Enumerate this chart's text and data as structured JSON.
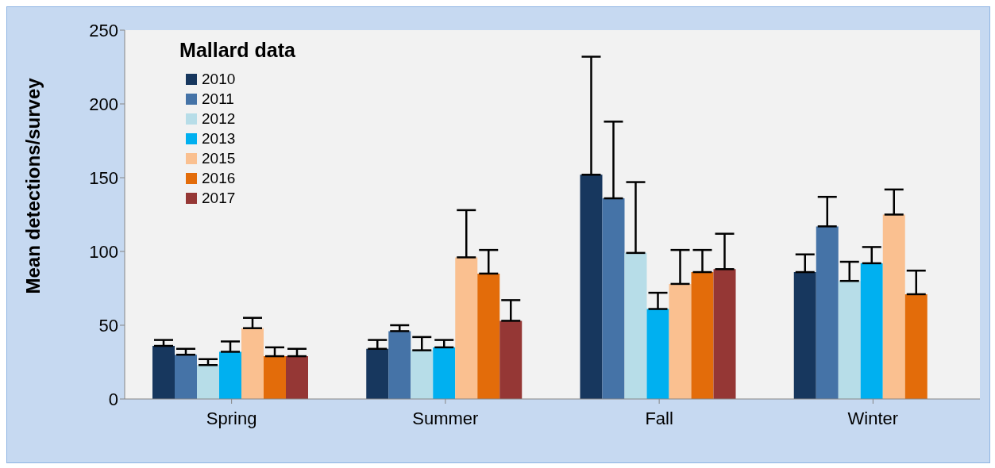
{
  "chart_data": {
    "type": "bar",
    "title": "Mallard data",
    "ylabel": "Mean detections/survey",
    "categories": [
      "Spring",
      "Summer",
      "Fall",
      "Winter"
    ],
    "series": [
      {
        "name": "2010",
        "color": "#17375e",
        "values": [
          36,
          34,
          152,
          86
        ],
        "errors": [
          [
            36,
            40
          ],
          [
            34,
            40
          ],
          [
            152,
            232
          ],
          [
            86,
            98
          ]
        ]
      },
      {
        "name": "2011",
        "color": "#4573a7",
        "values": [
          30,
          46,
          136,
          117
        ],
        "errors": [
          [
            30,
            34
          ],
          [
            46,
            50
          ],
          [
            136,
            188
          ],
          [
            117,
            137
          ]
        ]
      },
      {
        "name": "2012",
        "color": "#b7dde8",
        "values": [
          23,
          33,
          99,
          80
        ],
        "errors": [
          [
            23,
            27
          ],
          [
            33,
            42
          ],
          [
            99,
            147
          ],
          [
            80,
            93
          ]
        ]
      },
      {
        "name": "2013",
        "color": "#00b0f0",
        "values": [
          32,
          35,
          61,
          92
        ],
        "errors": [
          [
            32,
            39
          ],
          [
            35,
            40
          ],
          [
            61,
            72
          ],
          [
            92,
            103
          ]
        ]
      },
      {
        "name": "2015",
        "color": "#fac090",
        "values": [
          48,
          96,
          78,
          125
        ],
        "errors": [
          [
            48,
            55
          ],
          [
            96,
            128
          ],
          [
            78,
            101
          ],
          [
            125,
            142
          ]
        ]
      },
      {
        "name": "2016",
        "color": "#e36c0a",
        "values": [
          29,
          85,
          86,
          71
        ],
        "errors": [
          [
            29,
            35
          ],
          [
            85,
            101
          ],
          [
            86,
            101
          ],
          [
            71,
            87
          ]
        ]
      },
      {
        "name": "2017",
        "color": "#953735",
        "values": [
          29,
          53,
          88,
          null
        ],
        "errors": [
          [
            29,
            34
          ],
          [
            53,
            67
          ],
          [
            88,
            112
          ],
          null
        ]
      }
    ],
    "ylim": [
      0,
      250
    ],
    "yticks": [
      0,
      50,
      100,
      150,
      200,
      250
    ],
    "grid": false,
    "legend": "top left"
  }
}
